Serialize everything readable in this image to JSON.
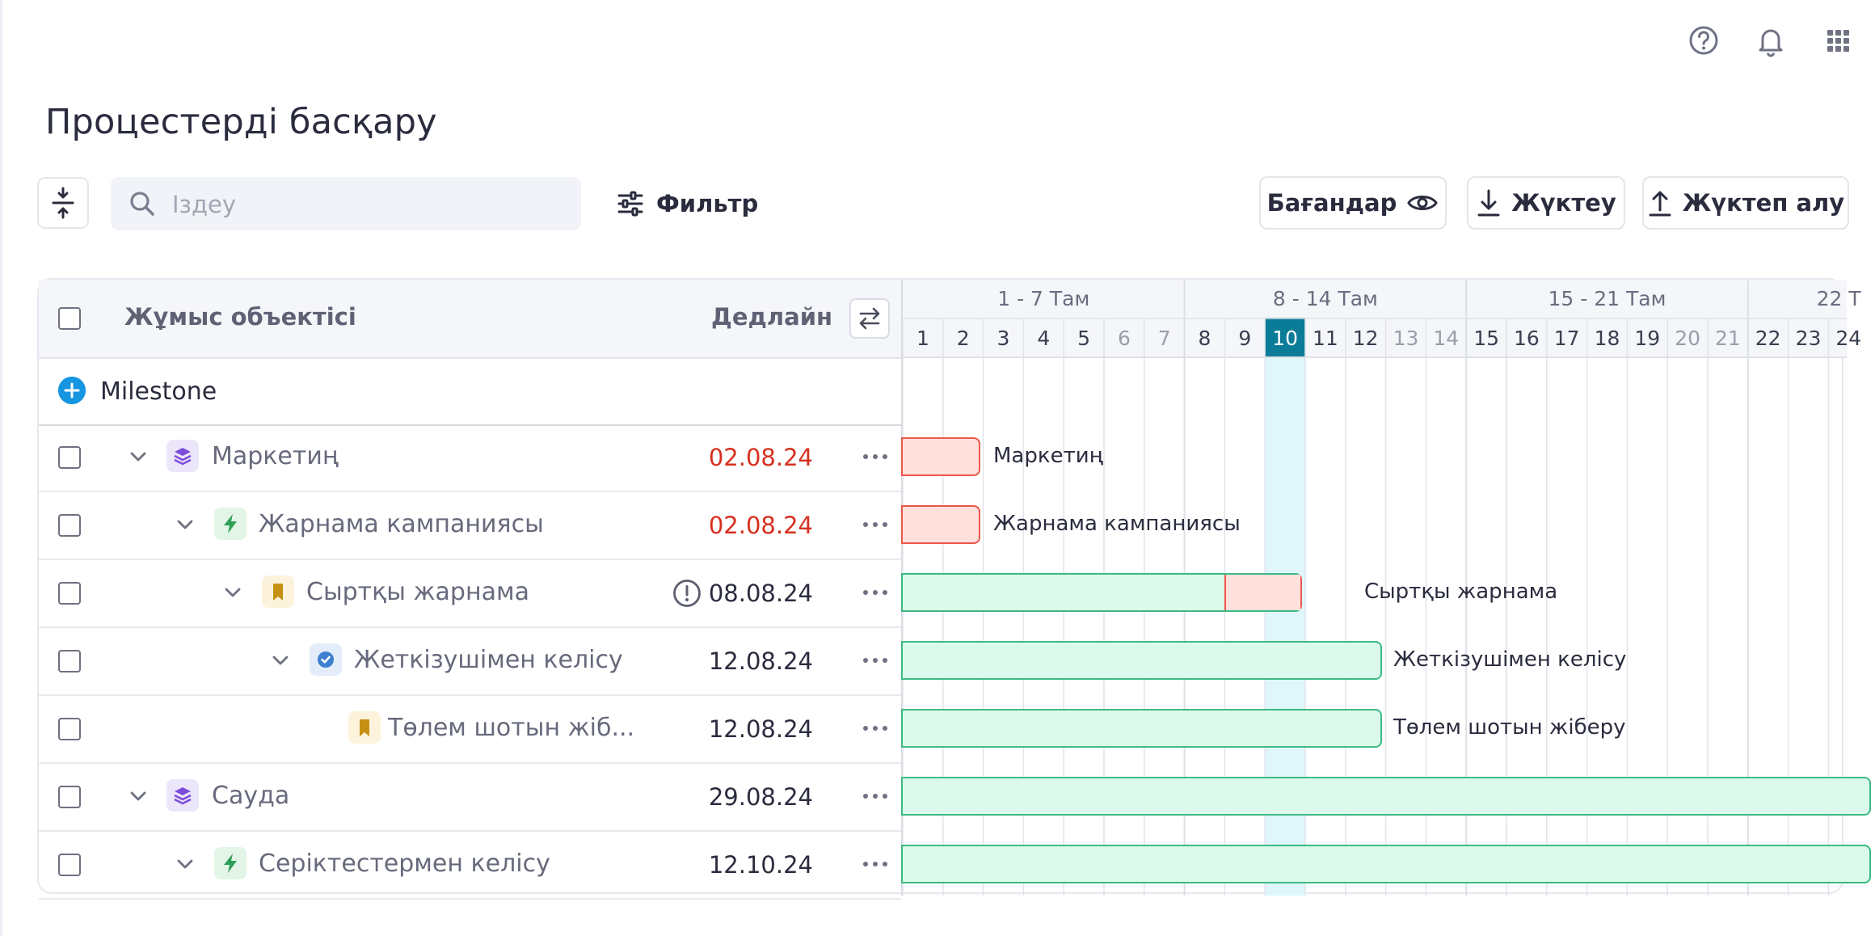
{
  "page": {
    "title": "Процестерді басқару"
  },
  "toolbar": {
    "search_placeholder": "Іздеу",
    "filter_label": "Фильтр",
    "columns_label": "Бағандар",
    "download_label": "Жүктеу",
    "upload_label": "Жүктеп алу"
  },
  "table": {
    "col_object": "Жұмыс объектісі",
    "col_deadline": "Дедлайн",
    "milestone_label": "Milestone",
    "rows": [
      {
        "name": "Маркетиң",
        "deadline": "02.08.24",
        "overdue": true,
        "type": "layers-icon",
        "level": 0,
        "bar_label": "Маркетиң"
      },
      {
        "name": "Жарнама кампаниясы",
        "deadline": "02.08.24",
        "overdue": true,
        "type": "bolt-icon",
        "level": 1,
        "bar_label": "Жарнама кампаниясы"
      },
      {
        "name": "Сыртқы жарнама",
        "deadline": "08.08.24",
        "overdue": false,
        "warning": true,
        "type": "bookmark-icon",
        "level": 2,
        "bar_label": "Сыртқы жарнама"
      },
      {
        "name": "Жеткізушімен келісу",
        "deadline": "12.08.24",
        "overdue": false,
        "type": "check-circle-icon",
        "level": 3,
        "bar_label": "Жеткізушімен келісу"
      },
      {
        "name": "Төлем шотын жіб...",
        "deadline": "12.08.24",
        "overdue": false,
        "type": "bookmark-icon",
        "level": 4,
        "bar_label": "Төлем шотын жіберу"
      },
      {
        "name": "Сауда",
        "deadline": "29.08.24",
        "overdue": false,
        "type": "layers-icon",
        "level": 0,
        "bar_label": ""
      },
      {
        "name": "Серіктестермен келісу",
        "deadline": "12.10.24",
        "overdue": false,
        "type": "bolt-icon",
        "level": 1,
        "bar_label": ""
      }
    ]
  },
  "gantt": {
    "weeks": [
      "1 - 7 Там",
      "8 - 14 Там",
      "15 - 21 Там",
      "22 Т"
    ],
    "days": [
      "1",
      "2",
      "3",
      "4",
      "5",
      "6",
      "7",
      "8",
      "9",
      "10",
      "11",
      "12",
      "13",
      "14",
      "15",
      "16",
      "17",
      "18",
      "19",
      "20",
      "21",
      "22",
      "23",
      "24"
    ],
    "today": "10",
    "weekend_days": [
      "6",
      "7",
      "13",
      "14",
      "20",
      "21"
    ]
  },
  "colors": {
    "today": "#0b7c98",
    "overdue": "#d7301f",
    "bar_green": "#dbfaeb",
    "bar_red": "#ffe0dc",
    "accent_blue": "#1695e0"
  }
}
